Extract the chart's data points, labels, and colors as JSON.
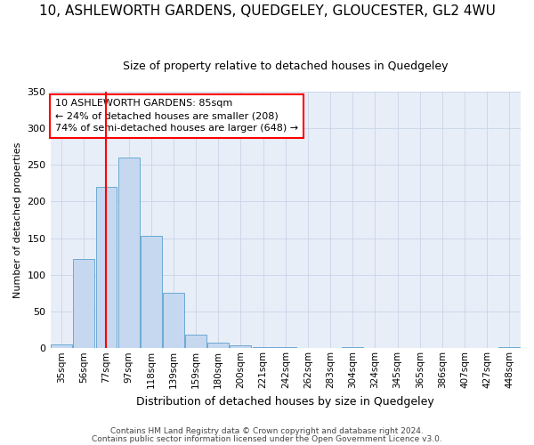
{
  "title": "10, ASHLEWORTH GARDENS, QUEDGELEY, GLOUCESTER, GL2 4WU",
  "subtitle": "Size of property relative to detached houses in Quedgeley",
  "xlabel": "Distribution of detached houses by size in Quedgeley",
  "ylabel": "Number of detached properties",
  "footer_line1": "Contains HM Land Registry data © Crown copyright and database right 2024.",
  "footer_line2": "Contains public sector information licensed under the Open Government Licence v3.0.",
  "annotation_line1": "10 ASHLEWORTH GARDENS: 85sqm",
  "annotation_line2": "← 24% of detached houses are smaller (208)",
  "annotation_line3": "74% of semi-detached houses are larger (648) →",
  "bar_labels": [
    "35sqm",
    "56sqm",
    "77sqm",
    "97sqm",
    "118sqm",
    "139sqm",
    "159sqm",
    "180sqm",
    "200sqm",
    "221sqm",
    "242sqm",
    "262sqm",
    "283sqm",
    "304sqm",
    "324sqm",
    "345sqm",
    "365sqm",
    "386sqm",
    "407sqm",
    "427sqm",
    "448sqm"
  ],
  "bar_values": [
    5,
    122,
    220,
    260,
    153,
    75,
    19,
    8,
    4,
    2,
    1,
    0,
    0,
    2,
    0,
    0,
    0,
    0,
    0,
    0,
    2
  ],
  "bar_color": "#c5d8f0",
  "bar_edge_color": "#6aaad4",
  "grid_color": "#c8d4e8",
  "background_color": "#e8eef8",
  "redline_x": 2.0,
  "ylim": [
    0,
    350
  ],
  "yticks": [
    0,
    50,
    100,
    150,
    200,
    250,
    300,
    350
  ],
  "redline_color": "red",
  "title_fontsize": 11,
  "subtitle_fontsize": 9,
  "ylabel_fontsize": 8,
  "xlabel_fontsize": 9,
  "tick_fontsize": 8,
  "xtick_fontsize": 7.5,
  "annot_fontsize": 8,
  "footer_fontsize": 6.5
}
